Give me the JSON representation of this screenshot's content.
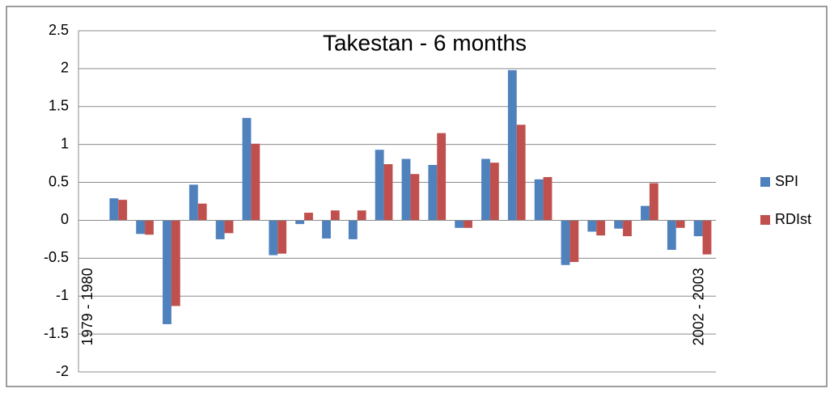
{
  "chart_data": {
    "type": "bar",
    "title": "Takestan - 6 months",
    "categories": [
      "1979 - 1980",
      null,
      null,
      null,
      null,
      null,
      null,
      null,
      null,
      null,
      null,
      null,
      null,
      null,
      null,
      null,
      null,
      null,
      null,
      null,
      null,
      null,
      null,
      "2002 - 2003"
    ],
    "series": [
      {
        "name": "SPI",
        "color": "#4f81bd",
        "values": [
          null,
          0.29,
          -0.18,
          -1.37,
          0.47,
          -0.25,
          1.35,
          -0.46,
          -0.05,
          -0.24,
          -0.25,
          0.93,
          0.81,
          0.73,
          -0.1,
          0.81,
          1.98,
          0.54,
          -0.59,
          -0.15,
          -0.11,
          0.19,
          -0.39,
          -0.21
        ]
      },
      {
        "name": "RDIst",
        "color": "#c0504d",
        "values": [
          null,
          0.27,
          -0.19,
          -1.13,
          0.22,
          -0.17,
          1.01,
          -0.44,
          0.1,
          0.13,
          0.13,
          0.74,
          0.61,
          1.15,
          -0.1,
          0.76,
          1.26,
          0.57,
          -0.55,
          -0.2,
          -0.21,
          0.49,
          -0.1,
          -0.45
        ]
      }
    ],
    "ylim": [
      -2,
      2.5
    ],
    "yticks": [
      -2,
      -1.5,
      -1,
      -0.5,
      0,
      0.5,
      1,
      1.5,
      2,
      2.5
    ],
    "grid": true,
    "legend": "right"
  }
}
